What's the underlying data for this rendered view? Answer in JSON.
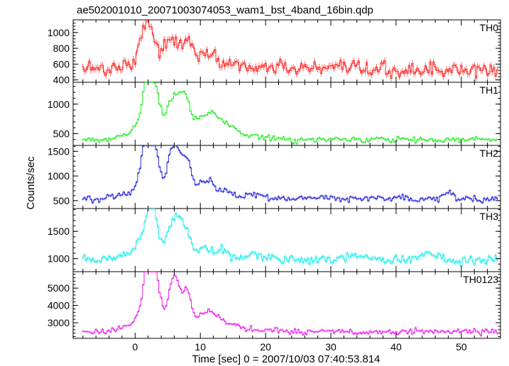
{
  "chart_data": {
    "type": "line",
    "title": "ae502001010_20071003074053_wam1_bst_4band_16bin.qdp",
    "xlabel": "Time [sec] 0 = 2007/10/03 07:40:53.814",
    "ylabel": "Counts/sec",
    "xlim": [
      -9.5,
      56
    ],
    "x_ticks": [
      0,
      10,
      20,
      30,
      40,
      50
    ],
    "grid": false,
    "error_bars": true,
    "shared_x": {
      "step": 0.25,
      "start": -8.0,
      "end": 55.5
    },
    "panels": [
      {
        "name": "TH0",
        "color": "#ff2a2a",
        "ylim": [
          370,
          1160
        ],
        "y_ticks": [
          400,
          600,
          800,
          1000
        ],
        "baseline": 520,
        "noise": 45,
        "features": [
          {
            "t": -6.0,
            "amp": 40,
            "width": 1.0
          },
          {
            "t": -2.0,
            "amp": 80,
            "width": 1.0
          },
          {
            "t": 0.5,
            "amp": 180,
            "width": 0.8
          },
          {
            "t": 1.8,
            "amp": 480,
            "width": 0.7
          },
          {
            "t": 2.8,
            "amp": 250,
            "width": 0.8
          },
          {
            "t": 4.5,
            "amp": 170,
            "width": 0.8
          },
          {
            "t": 6.0,
            "amp": 340,
            "width": 0.9
          },
          {
            "t": 8.0,
            "amp": 360,
            "width": 0.8
          },
          {
            "t": 10.0,
            "amp": 180,
            "width": 0.9
          },
          {
            "t": 12.0,
            "amp": 130,
            "width": 1.0
          },
          {
            "t": 15.0,
            "amp": 80,
            "width": 1.5
          },
          {
            "t": 20.0,
            "amp": 50,
            "width": 2.0
          },
          {
            "t": 28.0,
            "amp": 30,
            "width": 3.0
          }
        ]
      },
      {
        "name": "TH1",
        "color": "#22ee22",
        "ylim": [
          300,
          1370
        ],
        "y_ticks": [
          500,
          1000
        ],
        "baseline": 400,
        "noise": 22,
        "features": [
          {
            "t": -1.0,
            "amp": 80,
            "width": 1.5
          },
          {
            "t": 0.5,
            "amp": 150,
            "width": 0.8
          },
          {
            "t": 1.7,
            "amp": 820,
            "width": 0.6
          },
          {
            "t": 2.6,
            "amp": 520,
            "width": 0.6
          },
          {
            "t": 3.4,
            "amp": 600,
            "width": 0.6
          },
          {
            "t": 5.2,
            "amp": 440,
            "width": 0.7
          },
          {
            "t": 6.5,
            "amp": 620,
            "width": 0.8
          },
          {
            "t": 7.8,
            "amp": 540,
            "width": 0.7
          },
          {
            "t": 9.5,
            "amp": 250,
            "width": 0.8
          },
          {
            "t": 11.0,
            "amp": 280,
            "width": 0.9
          },
          {
            "t": 12.5,
            "amp": 300,
            "width": 1.0
          },
          {
            "t": 14.5,
            "amp": 180,
            "width": 1.2
          },
          {
            "t": 18.0,
            "amp": 60,
            "width": 2.0
          }
        ]
      },
      {
        "name": "TH2",
        "color": "#2a2adf",
        "ylim": [
          340,
          1620
        ],
        "y_ticks": [
          500,
          1000,
          1500
        ],
        "baseline": 545,
        "noise": 30,
        "features": [
          {
            "t": -1.0,
            "amp": 120,
            "width": 1.5
          },
          {
            "t": 1.0,
            "amp": 400,
            "width": 0.6
          },
          {
            "t": 1.8,
            "amp": 980,
            "width": 0.6
          },
          {
            "t": 2.7,
            "amp": 820,
            "width": 0.6
          },
          {
            "t": 3.6,
            "amp": 500,
            "width": 0.6
          },
          {
            "t": 5.3,
            "amp": 600,
            "width": 0.6
          },
          {
            "t": 6.4,
            "amp": 950,
            "width": 0.7
          },
          {
            "t": 8.0,
            "amp": 780,
            "width": 0.6
          },
          {
            "t": 9.8,
            "amp": 280,
            "width": 0.7
          },
          {
            "t": 11.5,
            "amp": 310,
            "width": 0.8
          },
          {
            "t": 13.5,
            "amp": 150,
            "width": 1.0
          },
          {
            "t": 18.0,
            "amp": 60,
            "width": 2.0
          },
          {
            "t": 48.0,
            "amp": 120,
            "width": 0.6
          }
        ]
      },
      {
        "name": "TH3",
        "color": "#22eeee",
        "ylim": [
          760,
          1920
        ],
        "y_ticks": [
          1000,
          1500
        ],
        "baseline": 980,
        "noise": 40,
        "features": [
          {
            "t": -1.0,
            "amp": 120,
            "width": 1.5
          },
          {
            "t": 1.0,
            "amp": 300,
            "width": 0.8
          },
          {
            "t": 2.2,
            "amp": 620,
            "width": 0.7
          },
          {
            "t": 3.0,
            "amp": 520,
            "width": 0.7
          },
          {
            "t": 5.0,
            "amp": 380,
            "width": 0.8
          },
          {
            "t": 6.5,
            "amp": 740,
            "width": 0.8
          },
          {
            "t": 8.0,
            "amp": 420,
            "width": 0.7
          },
          {
            "t": 10.5,
            "amp": 200,
            "width": 1.0
          },
          {
            "t": 13.0,
            "amp": 150,
            "width": 1.2
          },
          {
            "t": 18.0,
            "amp": 90,
            "width": 2.0
          },
          {
            "t": 34.0,
            "amp": 70,
            "width": 2.0
          },
          {
            "t": 45.0,
            "amp": 90,
            "width": 1.5
          }
        ]
      },
      {
        "name": "TH0123",
        "color": "#ee22ee",
        "ylim": [
          2100,
          5950
        ],
        "y_ticks": [
          3000,
          4000,
          5000
        ],
        "baseline": 2480,
        "noise": 80,
        "features": [
          {
            "t": -1.0,
            "amp": 300,
            "width": 1.5
          },
          {
            "t": 0.6,
            "amp": 700,
            "width": 0.7
          },
          {
            "t": 1.8,
            "amp": 3100,
            "width": 0.6
          },
          {
            "t": 2.7,
            "amp": 2400,
            "width": 0.6
          },
          {
            "t": 3.6,
            "amp": 1900,
            "width": 0.6
          },
          {
            "t": 5.3,
            "amp": 1600,
            "width": 0.6
          },
          {
            "t": 6.4,
            "amp": 2700,
            "width": 0.7
          },
          {
            "t": 8.0,
            "amp": 2300,
            "width": 0.6
          },
          {
            "t": 9.8,
            "amp": 800,
            "width": 0.7
          },
          {
            "t": 11.3,
            "amp": 900,
            "width": 0.8
          },
          {
            "t": 12.8,
            "amp": 700,
            "width": 0.9
          },
          {
            "t": 15.0,
            "amp": 400,
            "width": 1.2
          },
          {
            "t": 20.0,
            "amp": 150,
            "width": 2.0
          }
        ]
      }
    ]
  }
}
